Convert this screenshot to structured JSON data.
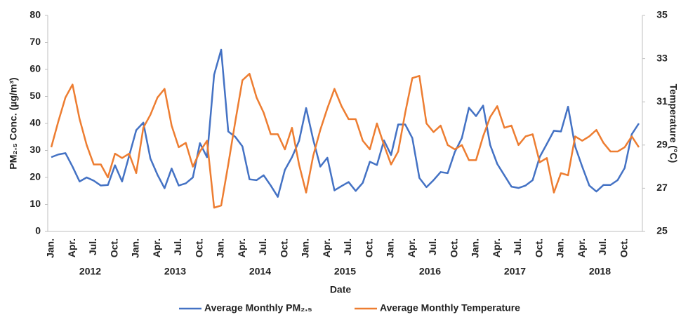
{
  "chart_data": {
    "type": "line",
    "xlabel": "Date",
    "ylabel": "PM₂.₅ Conc. (µg/m³)",
    "y2label": "Temperature (°C)",
    "categories": [
      "Jan.",
      null,
      null,
      "Apr.",
      null,
      null,
      "Jul.",
      null,
      null,
      "Oct.",
      null,
      null,
      "Jan.",
      null,
      null,
      "Apr.",
      null,
      null,
      "Jul.",
      null,
      null,
      "Oct.",
      null,
      null,
      "Jan.",
      null,
      null,
      "Apr.",
      null,
      null,
      "Jul.",
      null,
      null,
      "Oct.",
      null,
      null,
      "Jan.",
      null,
      null,
      "Apr.",
      null,
      null,
      "Jul.",
      null,
      null,
      "Oct.",
      null,
      null,
      "Jan.",
      null,
      null,
      "Apr.",
      null,
      null,
      "Jul.",
      null,
      null,
      "Oct.",
      null,
      null,
      "Jan.",
      null,
      null,
      "Apr.",
      null,
      null,
      "Jul.",
      null,
      null,
      "Oct.",
      null,
      null,
      "Jan.",
      null,
      null,
      "Apr.",
      null,
      null,
      "Jul.",
      null,
      null,
      "Oct.",
      null,
      null
    ],
    "year_groups": [
      "2012",
      "2013",
      "2014",
      "2015",
      "2016",
      "2017",
      "2018"
    ],
    "series": [
      {
        "name": "Average Monthly PM₂.₅",
        "color": "#4472c4",
        "axis": "y",
        "values": [
          27.5,
          28.5,
          29,
          24,
          18.5,
          20,
          18.8,
          17,
          17.2,
          24.5,
          18.5,
          28,
          37.5,
          40.3,
          27,
          21,
          16,
          23.3,
          17,
          17.8,
          20,
          32.7,
          27.5,
          58,
          67.3,
          37,
          35,
          31.5,
          19.3,
          19,
          20.8,
          17,
          12.8,
          22.8,
          27.5,
          33.5,
          45.7,
          34,
          24,
          27.3,
          15.2,
          16.8,
          18.3,
          15,
          18,
          25.8,
          24.6,
          33.7,
          28.3,
          39.6,
          39.6,
          34.6,
          19.8,
          16.4,
          19,
          22,
          21.6,
          29.4,
          34.6,
          45.8,
          42.7,
          46.6,
          32,
          25,
          20.8,
          16.6,
          16.1,
          17,
          19,
          27.6,
          32.4,
          37.3,
          37,
          46.2,
          31.5,
          24,
          17,
          14.8,
          17.2,
          17.2,
          19,
          23.5,
          36,
          40
        ]
      },
      {
        "name": "Average Monthly Temperature",
        "color": "#ed7d31",
        "axis": "y2",
        "values": [
          28.9,
          30.1,
          31.2,
          31.8,
          30.2,
          29,
          28.1,
          28.1,
          27.5,
          28.6,
          28.4,
          28.6,
          27.7,
          29.8,
          30.4,
          31.2,
          31.6,
          29.9,
          28.9,
          29.1,
          28,
          28.7,
          29.2,
          26.1,
          26.2,
          28.1,
          30.1,
          32,
          32.3,
          31.2,
          30.5,
          29.5,
          29.5,
          28.8,
          29.8,
          28.1,
          26.8,
          28.5,
          29.7,
          30.7,
          31.6,
          30.8,
          30.2,
          30.2,
          29.2,
          28.8,
          30,
          29,
          28.1,
          28.7,
          30.5,
          32.1,
          32.2,
          30,
          29.6,
          29.9,
          29,
          28.8,
          29,
          28.3,
          28.3,
          29.4,
          30.3,
          30.8,
          29.8,
          29.9,
          29,
          29.4,
          29.5,
          28.2,
          28.4,
          26.8,
          27.7,
          27.6,
          29.4,
          29.2,
          29.4,
          29.7,
          29.1,
          28.7,
          28.7,
          28.9,
          29.4,
          28.9
        ]
      }
    ],
    "ylim": [
      0,
      80
    ],
    "yticks": [
      0,
      10,
      20,
      30,
      40,
      50,
      60,
      70,
      80
    ],
    "y2lim": [
      25,
      35
    ],
    "y2ticks": [
      25,
      27,
      29,
      31,
      33,
      35
    ],
    "grid": false
  }
}
